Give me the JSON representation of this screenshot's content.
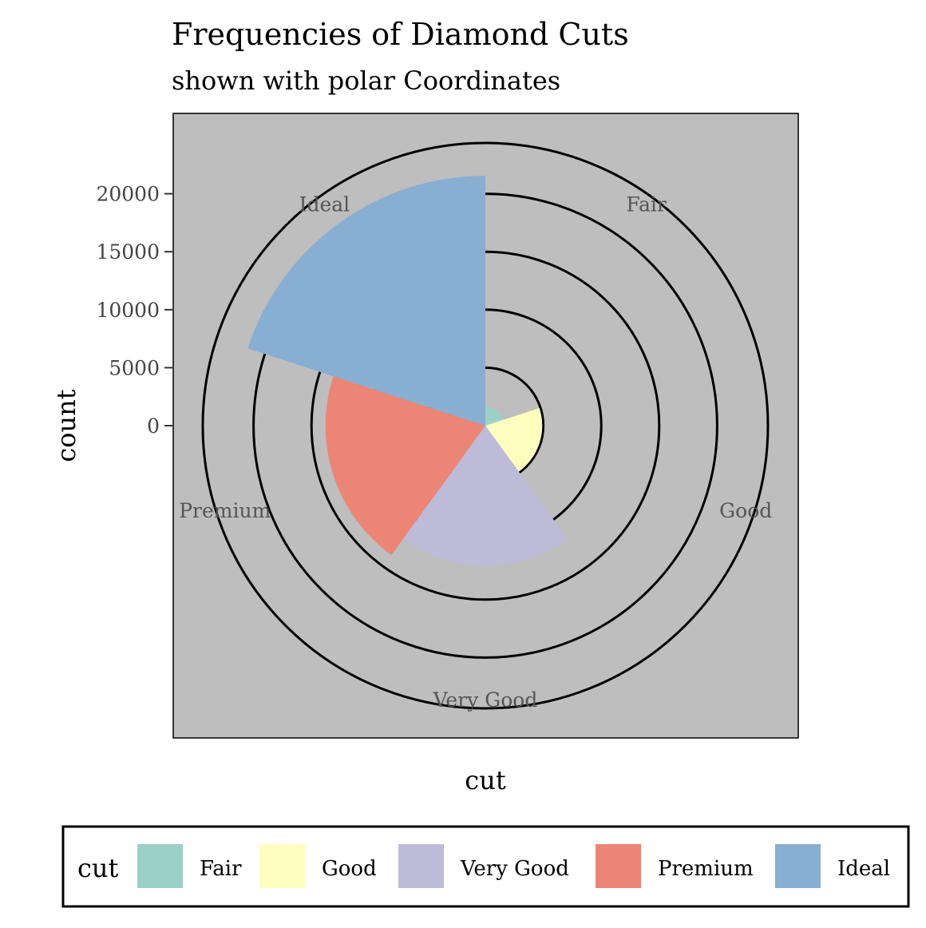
{
  "chart_data": {
    "type": "bar",
    "coord": "polar",
    "title": "Frequencies of Diamond Cuts",
    "subtitle": "shown with polar Coordinates",
    "xlabel": "cut",
    "ylabel": "count",
    "categories": [
      "Fair",
      "Good",
      "Very Good",
      "Premium",
      "Ideal"
    ],
    "values": [
      1610,
      4906,
      12082,
      13791,
      21551
    ],
    "colors": [
      "#9BD1C6",
      "#FFFEBF",
      "#BDBBD8",
      "#EB8575",
      "#88AED2"
    ],
    "yticks": [
      0,
      5000,
      10000,
      15000,
      20000
    ],
    "ytick_labels": [
      "0",
      "5000",
      "10000",
      "15000",
      "20000"
    ],
    "panel_background": "#BEBEBE",
    "grid_color": "#000000",
    "legend": {
      "title": "cut",
      "position": "bottom",
      "items": [
        "Fair",
        "Good",
        "Very Good",
        "Premium",
        "Ideal"
      ]
    }
  }
}
